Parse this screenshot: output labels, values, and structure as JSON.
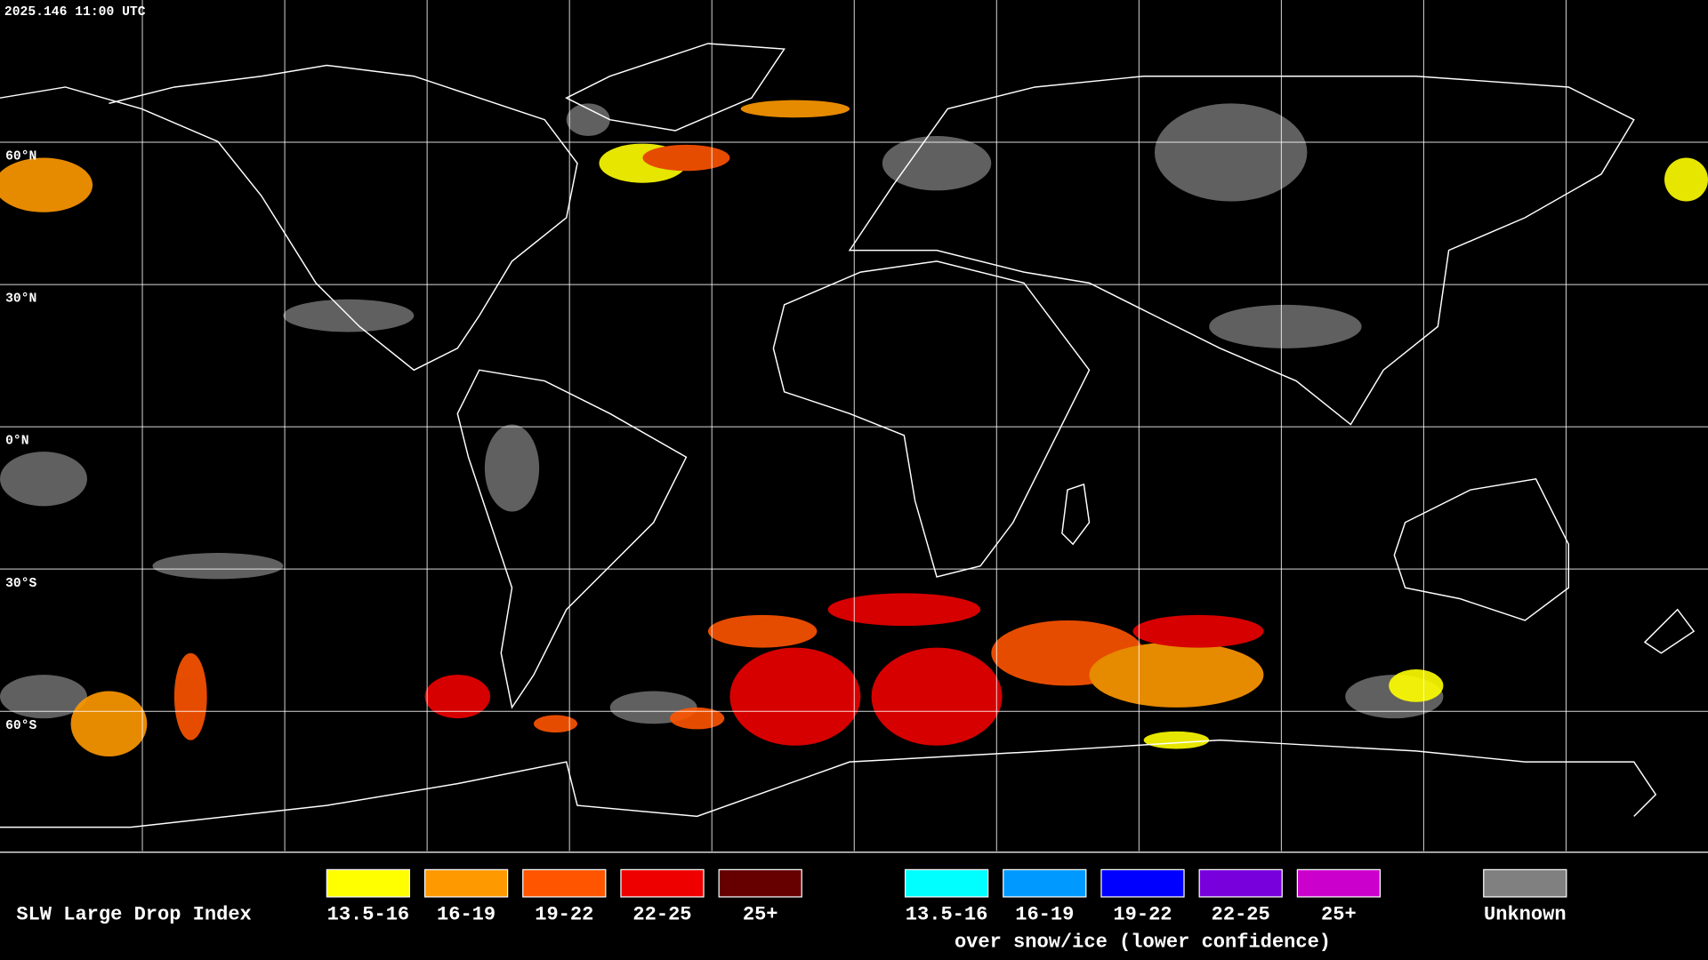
{
  "timestamp": "2025.146 11:00 UTC",
  "latitude_labels": [
    "60°N",
    "30°N",
    "0°N",
    "30°S",
    "60°S"
  ],
  "legend": {
    "title": "SLW Large Drop Index",
    "normal": [
      {
        "label": "13.5-16",
        "color": "#ffff00"
      },
      {
        "label": "16-19",
        "color": "#ff9900"
      },
      {
        "label": "19-22",
        "color": "#ff5500"
      },
      {
        "label": "22-25",
        "color": "#ee0000"
      },
      {
        "label": "25+",
        "color": "#660000"
      }
    ],
    "snow_ice": [
      {
        "label": "13.5-16",
        "color": "#00ffff"
      },
      {
        "label": "16-19",
        "color": "#0099ff"
      },
      {
        "label": "19-22",
        "color": "#0000ff"
      },
      {
        "label": "22-25",
        "color": "#7700dd"
      },
      {
        "label": "25+",
        "color": "#cc00cc"
      }
    ],
    "snow_ice_note": "over snow/ice (lower confidence)",
    "unknown": {
      "label": "Unknown",
      "color": "#808080"
    }
  }
}
